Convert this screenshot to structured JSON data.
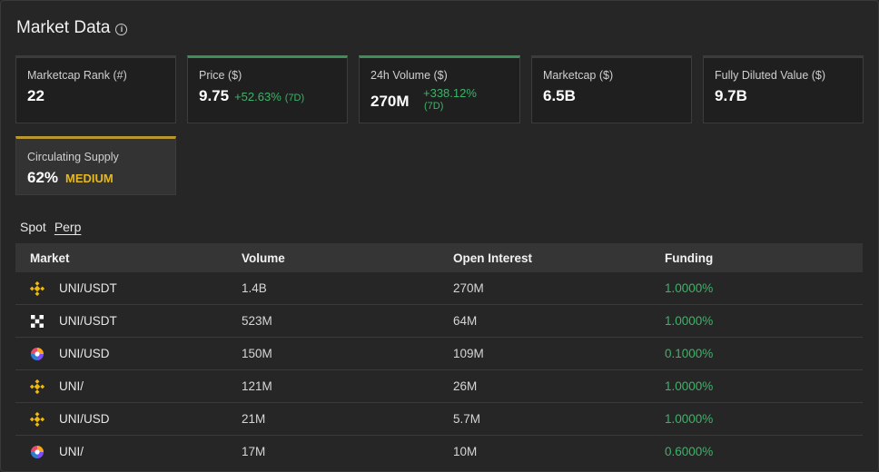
{
  "header": {
    "title": "Market Data",
    "info_glyph": "i"
  },
  "cards": [
    {
      "label": "Marketcap Rank (#)",
      "value": "22"
    },
    {
      "label": "Price ($)",
      "value": "9.75",
      "delta": "+52.63%",
      "period": "(7D)"
    },
    {
      "label": "24h Volume ($)",
      "value": "270M",
      "delta": "+338.12%",
      "period": "(7D)"
    },
    {
      "label": "Marketcap ($)",
      "value": "6.5B"
    },
    {
      "label": "Fully Diluted Value ($)",
      "value": "9.7B"
    },
    {
      "label": "Circulating Supply",
      "value": "62%",
      "tag": "MEDIUM"
    }
  ],
  "colors": {
    "positive": "#3ab568",
    "accent_gold": "#e6b81e",
    "card_top_green": "#3b8f57",
    "card_top_gold": "#b8982e"
  },
  "tabs": [
    {
      "label": "Spot"
    },
    {
      "label": "Perp"
    }
  ],
  "table": {
    "headers": [
      "Market",
      "Volume",
      "Open Interest",
      "Funding"
    ],
    "rows": [
      {
        "icon": "binance-icon",
        "market": "UNI/USDT",
        "volume": "1.4B",
        "open_interest": "270M",
        "funding": "1.0000%"
      },
      {
        "icon": "okx-icon",
        "market": "UNI/USDT",
        "volume": "523M",
        "open_interest": "64M",
        "funding": "1.0000%"
      },
      {
        "icon": "multicolor-exchange-icon",
        "market": "UNI/USD",
        "volume": "150M",
        "open_interest": "109M",
        "funding": "0.1000%"
      },
      {
        "icon": "binance-icon",
        "market": "UNI/",
        "volume": "121M",
        "open_interest": "26M",
        "funding": "1.0000%"
      },
      {
        "icon": "binance-icon",
        "market": "UNI/USD",
        "volume": "21M",
        "open_interest": "5.7M",
        "funding": "1.0000%"
      },
      {
        "icon": "multicolor-exchange-icon",
        "market": "UNI/",
        "volume": "17M",
        "open_interest": "10M",
        "funding": "0.6000%"
      }
    ]
  }
}
